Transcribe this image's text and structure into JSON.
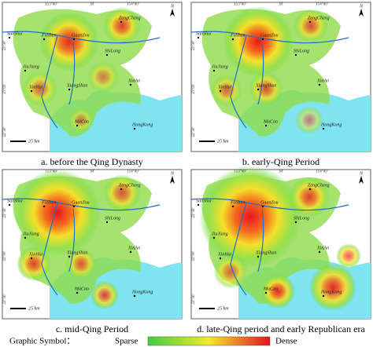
{
  "panels": [
    {
      "caption": "a. before the Qing Dynasty"
    },
    {
      "caption": "b. early-Qing Period"
    },
    {
      "caption": "c. mid-Qing Period"
    },
    {
      "caption": "d. late-Qing period and early Republican era"
    }
  ],
  "places": [
    "SanShui",
    "FoShan",
    "GuanZou",
    "ZengCheng",
    "ShiLong",
    "JiuJiang",
    "XinHui",
    "XiangShan",
    "XinAn",
    "MaCao",
    "HongKong"
  ],
  "graticule": {
    "top": [
      "113°00'",
      "30'",
      "114°00'"
    ],
    "left": [
      "23°30'",
      "23°00'",
      "22°30'"
    ]
  },
  "north": "N",
  "scale": "25 km",
  "legend": {
    "label": "Graphic Symbol：",
    "low": "Sparse",
    "high": "Dense"
  }
}
